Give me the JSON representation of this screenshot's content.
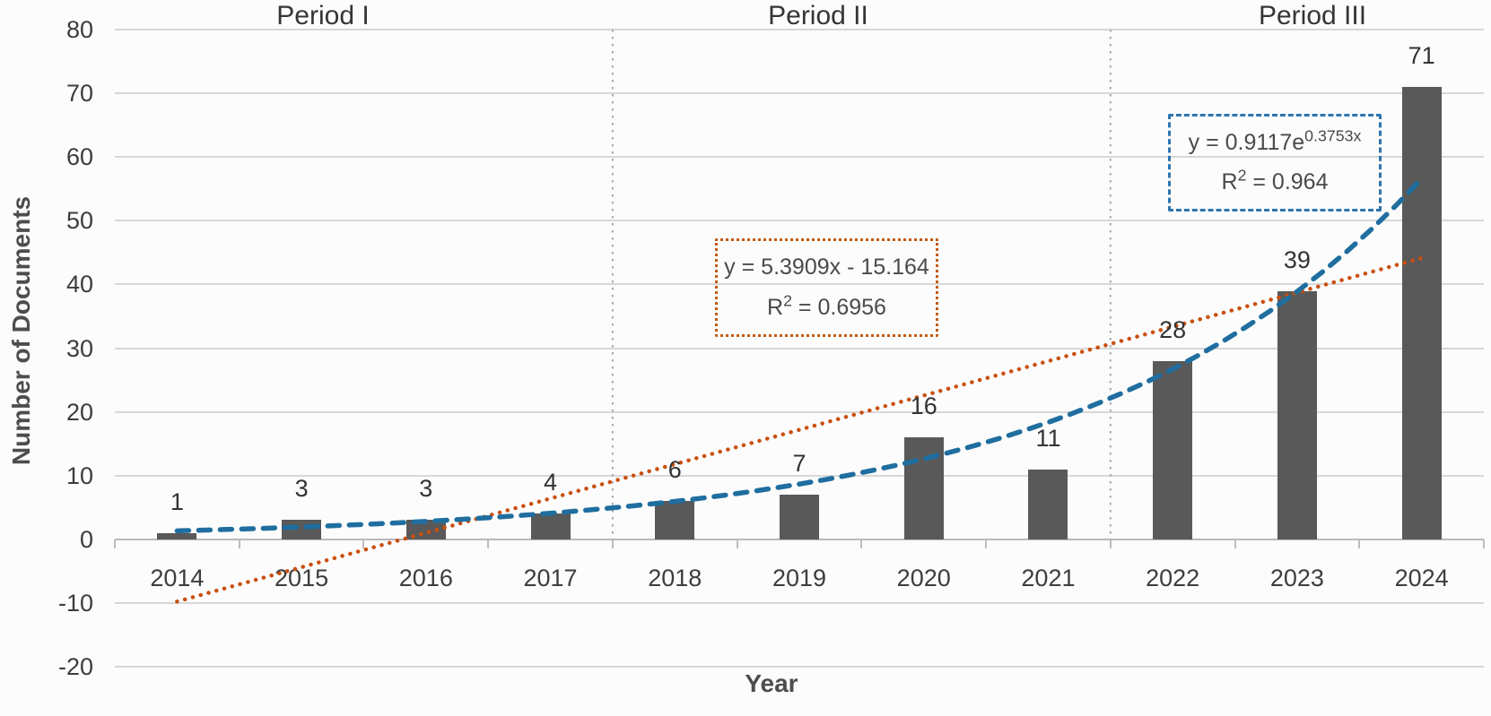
{
  "chart_data": {
    "type": "bar",
    "title": "",
    "xlabel": "Year",
    "ylabel": "Number of Documents",
    "categories": [
      "2014",
      "2015",
      "2016",
      "2017",
      "2018",
      "2019",
      "2020",
      "2021",
      "2022",
      "2023",
      "2024"
    ],
    "series": [
      {
        "name": "Number of Documents",
        "values": [
          1,
          3,
          3,
          4,
          6,
          7,
          16,
          11,
          28,
          39,
          71
        ]
      }
    ],
    "data_labels": [
      "1",
      "3",
      "3",
      "4",
      "6",
      "7",
      "16",
      "11",
      "28",
      "39",
      "71"
    ],
    "ylim": [
      -20,
      80
    ],
    "yticks": [
      80,
      70,
      60,
      50,
      40,
      30,
      20,
      10,
      0,
      -10,
      -20
    ],
    "grid": true,
    "legend_position": "none",
    "period_labels": [
      "Period I",
      "Period II",
      "Period III"
    ],
    "dividers_after_category_index": [
      3,
      7
    ],
    "trendlines": [
      {
        "name": "linear",
        "slope": 5.3909,
        "intercept": -15.164,
        "x_range": [
          1,
          11
        ],
        "equation_text": "y = 5.3909x - 15.164",
        "r2_base": "R",
        "r2_sup": "2",
        "r2_rest": " = 0.6956",
        "line_style": "dotted",
        "color": "#c9500f"
      },
      {
        "name": "exponential",
        "coef_a": 0.9117,
        "coef_k": 0.3753,
        "x_range": [
          1,
          11
        ],
        "equation_prefix": "y = 0.9117e",
        "equation_sup": "0.3753x",
        "r2_base": "R",
        "r2_sup": "2",
        "r2_rest": " = 0.964",
        "line_style": "dashed",
        "color": "#1f6e9f"
      }
    ],
    "colors": {
      "bar": "#595959",
      "gridline": "#d7d7d7",
      "axis_line": "#b9b9b9",
      "tick": "#bdbdbd",
      "divider": "#a9a9a9",
      "linear_trend": "#c9500f",
      "exp_trend": "#1f6e9f",
      "linear_box_border": "#c25a11",
      "exp_box_border": "#2e74ae"
    }
  }
}
